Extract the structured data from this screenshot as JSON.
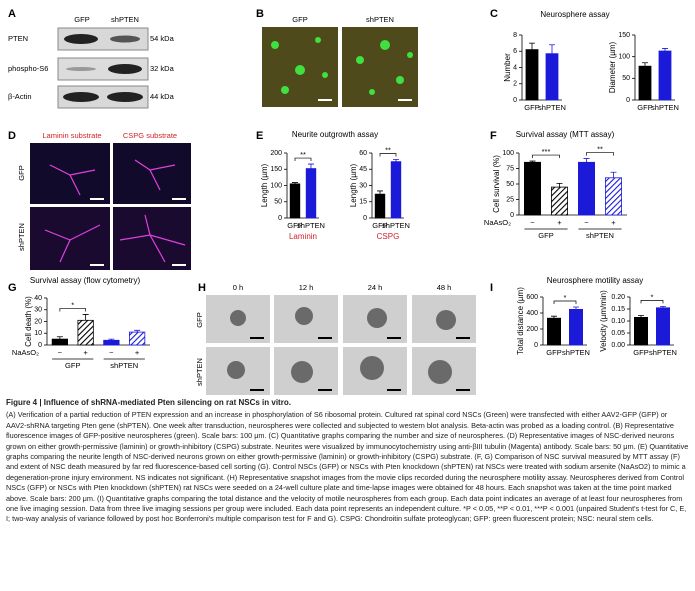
{
  "panel_labels": [
    "A",
    "B",
    "C",
    "D",
    "E",
    "F",
    "G",
    "H",
    "I"
  ],
  "blot": {
    "lanes": [
      "GFP",
      "shPTEN"
    ],
    "rows": [
      {
        "protein": "PTEN",
        "size": "54 kDa"
      },
      {
        "protein": "phospho-S6",
        "size": "32 kDa"
      },
      {
        "protein": "β-Actin",
        "size": "44 kDa"
      }
    ]
  },
  "fluorescence": {
    "lanes": [
      "GFP",
      "shPTEN"
    ]
  },
  "neurons": {
    "substrates": [
      "Laminin substrate",
      "CSPG substrate"
    ],
    "groups": [
      "GFP",
      "shPTEN"
    ]
  },
  "timelapse": {
    "times": [
      "0 h",
      "12 h",
      "24 h",
      "48 h"
    ],
    "groups": [
      "GFP",
      "shPTEN"
    ]
  },
  "chart_data": [
    {
      "type": "bar",
      "title": "Neurosphere assay",
      "ylabel": "Number",
      "categories": [
        "GFP",
        "shPTEN"
      ],
      "values": [
        6.2,
        5.7
      ],
      "errors": [
        0.8,
        1.1
      ],
      "colors": [
        "#000000",
        "#1a1ad8"
      ],
      "ylim": [
        0,
        8
      ],
      "yticks": [
        0,
        2,
        4,
        6,
        8
      ]
    },
    {
      "type": "bar",
      "ylabel": "Diameter (µm)",
      "categories": [
        "GFP",
        "shPTEN"
      ],
      "values": [
        78,
        113
      ],
      "errors": [
        8,
        6
      ],
      "colors": [
        "#000000",
        "#1a1ad8"
      ],
      "ylim": [
        0,
        150
      ],
      "yticks": [
        0,
        50,
        100,
        150
      ]
    },
    {
      "type": "bar",
      "title": "Neurite outgrowth assay",
      "ylabel": "Length (µm)",
      "categories": [
        "GFP",
        "shPTEN"
      ],
      "values": [
        105,
        152
      ],
      "errors": [
        4,
        14
      ],
      "colors": [
        "#000000",
        "#1a1ad8"
      ],
      "ylim": [
        0,
        200
      ],
      "yticks": [
        0,
        50,
        100,
        150,
        200
      ],
      "significance": [
        "**"
      ],
      "group_label": "Laminin",
      "group_label_color": "#d0222a"
    },
    {
      "type": "bar",
      "ylabel": "Length (µm)",
      "categories": [
        "GFP",
        "shPTEN"
      ],
      "values": [
        22,
        52
      ],
      "errors": [
        3,
        2
      ],
      "colors": [
        "#000000",
        "#1a1ad8"
      ],
      "ylim": [
        0,
        60
      ],
      "yticks": [
        0,
        15,
        30,
        45,
        60
      ],
      "significance": [
        "**"
      ],
      "group_label": "CSPG",
      "group_label_color": "#d0222a"
    },
    {
      "type": "bar",
      "title": "Survival assay (MTT assay)",
      "ylabel": "Cell survival (%)",
      "categories": [
        "−",
        "+",
        "−",
        "+"
      ],
      "values": [
        85,
        45,
        85,
        60
      ],
      "errors": [
        2,
        6,
        6,
        9
      ],
      "colors": [
        "#000000",
        "#000000",
        "#1a1ad8",
        "#1a1ad8"
      ],
      "hatch": [
        false,
        true,
        false,
        true
      ],
      "ylim": [
        0,
        100
      ],
      "yticks": [
        0,
        25,
        50,
        75,
        100
      ],
      "significance": [
        "***",
        "**"
      ],
      "groups": [
        "GFP",
        "shPTEN"
      ],
      "treatment_label": "NaAsO₂"
    },
    {
      "type": "bar",
      "title": "Survival assay (flow cytometry)",
      "ylabel": "Cell death (%)",
      "categories": [
        "−",
        "+",
        "−",
        "+"
      ],
      "values": [
        5,
        21,
        4,
        11
      ],
      "errors": [
        2,
        5,
        1,
        1.5
      ],
      "colors": [
        "#000000",
        "#000000",
        "#1a1ad8",
        "#1a1ad8"
      ],
      "hatch": [
        false,
        true,
        false,
        true
      ],
      "ylim": [
        0,
        40
      ],
      "yticks": [
        0,
        10,
        20,
        30,
        40
      ],
      "significance": [
        "*"
      ],
      "groups": [
        "GFP",
        "shPTEN"
      ],
      "treatment_label": "NaAsO₂"
    },
    {
      "type": "bar",
      "title": "Neurosphere motility assay",
      "ylabel": "Total distance (µm)",
      "categories": [
        "GFP",
        "shPTEN"
      ],
      "values": [
        335,
        445
      ],
      "errors": [
        25,
        30
      ],
      "colors": [
        "#000000",
        "#1a1ad8"
      ],
      "ylim": [
        0,
        600
      ],
      "yticks": [
        0,
        200,
        400,
        600
      ],
      "significance": [
        "*"
      ]
    },
    {
      "type": "bar",
      "ylabel": "Velocity (µm/min)",
      "categories": [
        "GFP",
        "shPTEN"
      ],
      "values": [
        0.115,
        0.155
      ],
      "errors": [
        0.008,
        0.006
      ],
      "colors": [
        "#000000",
        "#1a1ad8"
      ],
      "ylim": [
        0,
        0.2
      ],
      "yticks": [
        {
          "value": 0,
          "label": "0.00"
        },
        0.05,
        {
          "value": 0.1,
          "label": "0.10"
        },
        0.15,
        {
          "value": 0.2,
          "label": "0.20"
        }
      ],
      "significance": [
        "*"
      ]
    }
  ],
  "caption": {
    "title": "Figure 4 | Influence of shRNA-mediated Pten silencing on rat NSCs in vitro.",
    "body": "(A) Verification of a partial reduction of PTEN expression and an increase in phosphorylation of S6 ribosomal protein. Cultured rat spinal cord NSCs (Green) were transfected with either AAV2-GFP (GFP) or AAV2-shRNA targeting Pten gene (shPTEN). One week after transduction, neurospheres were collected and subjected to western blot analysis. Beta-actin was probed as a loading control. (B) Representative fluorescence images of GFP-positive neurospheres (green). Scale bars: 100 μm. (C) Quantitative graphs comparing the number and size of neurospheres. (D) Representative images of NSC-derived neurons grown on either growth-permissive (laminin) or growth-inhibitory (CSPG) substrate. Neurites were visualized by immunocytochemistry using anti-βIII tubulin (Magenta) antibody. Scale bars: 50 μm. (E) Quantitative graphs comparing the neurite length of NSC-derived neurons grown on either growth-permissive (laminin) or growth-inhibitory (CSPG) substrate. (F, G) Comparison of NSC survival measured by MTT assay (F) and extent of NSC death measured by far red fluorescence-based cell sorting (G). Control NSCs (GFP) or NSCs with Pten knockdown (shPTEN) rat NSCs were treated with sodium arsenite (NaAsO2) to mimic a degeneration-prone injury environment. NS indicates not significant. (H) Representative snapshot images from the movie clips recorded during the neurosphere motility assay. Neurospheres derived from Control NSCs (GFP) or NSCs with Pten knockdown (shPTEN) rat NSCs were seeded on a 24-well culture plate and time-lapse images were obtained for 48 hours. Each snapshot was taken at the time point marked above. Scale bars: 200 μm. (I) Quantitative graphs comparing the total distance and the velocity of motile neurospheres from each group. Each data point indicates an average of at least four neurospheres from one live imaging session. Data from three live imaging sessions per group were included. Each data point represents an independent culture. *P < 0.05, **P < 0.01, ***P < 0.001 (unpaired Student's t-test for C, E, I; two-way analysis of variance followed by post hoc Bonferroni's multiple comparison test for F and G). CSPG: Chondroitin sulfate proteoglycan; GFP: green fluorescent protein; NSC: neural stem cells."
  }
}
